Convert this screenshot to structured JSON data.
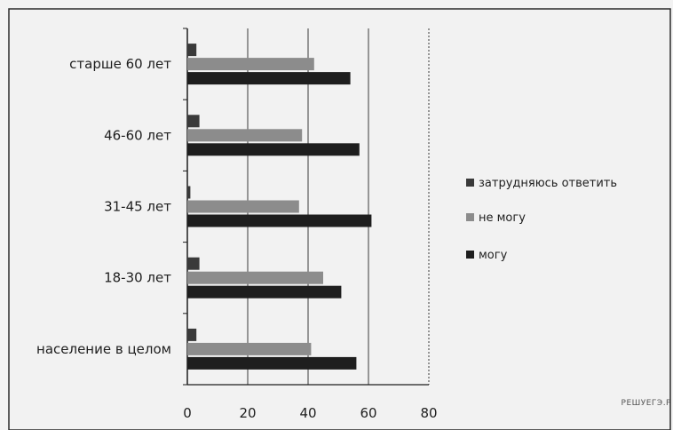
{
  "chart_data": {
    "type": "bar",
    "orientation": "horizontal",
    "categories": [
      "население в целом",
      "18-30 лет",
      "31-45 лет",
      "46-60 лет",
      "старше 60 лет"
    ],
    "series": [
      {
        "name": "затрудняюсь ответить",
        "values": [
          3,
          4,
          1,
          4,
          3
        ],
        "color": "#3a3a3a"
      },
      {
        "name": "не могу",
        "values": [
          41,
          45,
          37,
          38,
          42
        ],
        "color": "#8c8c8c"
      },
      {
        "name": "могу",
        "values": [
          56,
          51,
          61,
          57,
          54
        ],
        "color": "#1e1e1e"
      }
    ],
    "xlim": [
      0,
      80
    ],
    "xticks": [
      "0",
      "20",
      "40",
      "60",
      "80"
    ],
    "grid": true,
    "legend_position": "right"
  },
  "watermark": "РЕШУЕГЭ.Р"
}
